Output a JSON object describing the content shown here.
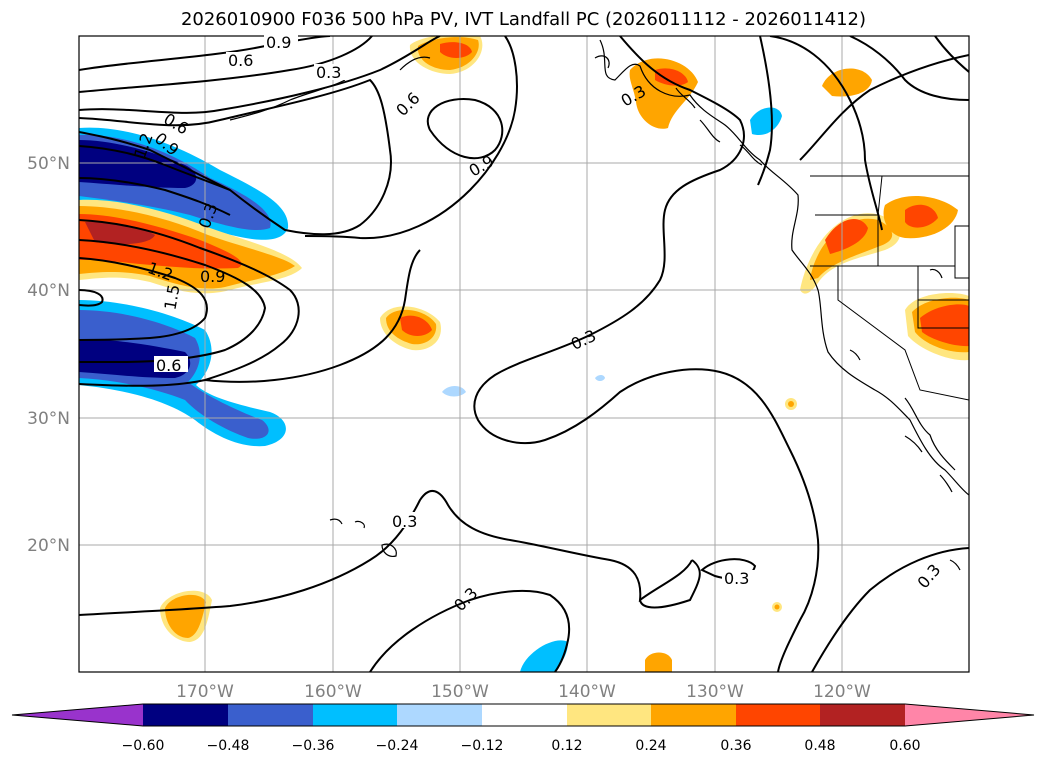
{
  "title": "2026010900 F036 500 hPa PV, IVT Landfall PC (2026011112 - 2026011412)",
  "lat_labels": [
    "50°N",
    "40°N",
    "30°N",
    "20°N"
  ],
  "lon_labels": [
    "170°W",
    "160°W",
    "150°W",
    "140°W",
    "130°W",
    "120°W"
  ],
  "contour_labels": [
    "0.9",
    "0.6",
    "0.3",
    "0.6",
    "0.6",
    "0.9",
    "1.2",
    "0.3",
    "0.9",
    "1.2",
    "1.5",
    "0.6",
    "0.9",
    "0.3",
    "0.3",
    "0.3",
    "0.3",
    "0.3",
    "0.3"
  ],
  "colorbar": {
    "ticks": [
      "−0.60",
      "−0.48",
      "−0.36",
      "−0.24",
      "−0.12",
      "0.12",
      "0.24",
      "0.36",
      "0.48",
      "0.60"
    ],
    "colors": {
      "under": "#9933CC",
      "n060": "#000080",
      "n048": "#3A5FCD",
      "n036": "#00BFFF",
      "n024": "#ADD8FF",
      "n012": "#FFFFFF",
      "p012": "#FFE680",
      "p024": "#FFA500",
      "p036": "#FF4500",
      "p048": "#B22222",
      "over": "#FF85A8"
    }
  }
}
